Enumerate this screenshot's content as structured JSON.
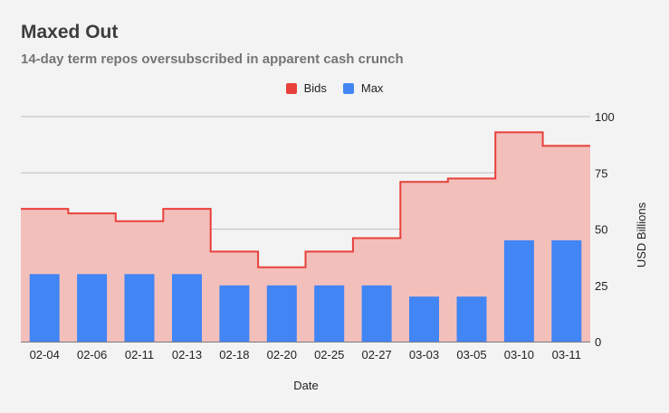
{
  "title": "Maxed Out",
  "subtitle": "14-day term repos oversubscribed in apparent cash crunch",
  "legend": [
    {
      "label": "Bids",
      "color": "#e8403a"
    },
    {
      "label": "Max",
      "color": "#4285f4"
    }
  ],
  "chart_data": {
    "type": "bar",
    "categories": [
      "02-04",
      "02-06",
      "02-11",
      "02-13",
      "02-18",
      "02-20",
      "02-25",
      "02-27",
      "03-03",
      "03-05",
      "03-10",
      "03-11"
    ],
    "series": [
      {
        "name": "Bids",
        "type": "step-area",
        "color": "#e8403a",
        "fill": "#f3bfbb",
        "values": [
          59,
          57,
          53.5,
          59,
          40,
          33,
          40,
          46,
          71,
          72.5,
          93,
          87
        ]
      },
      {
        "name": "Max",
        "type": "bar",
        "color": "#4285f4",
        "values": [
          30,
          30,
          30,
          30,
          25,
          25,
          25,
          25,
          20,
          20,
          45,
          45
        ]
      }
    ],
    "xlabel": "Date",
    "ylabel": "USD Billions",
    "ylim": [
      0,
      100
    ],
    "yticks": [
      0,
      25,
      50,
      75,
      100
    ],
    "y_axis_side": "right",
    "grid": true,
    "legend_position": "top-center"
  }
}
